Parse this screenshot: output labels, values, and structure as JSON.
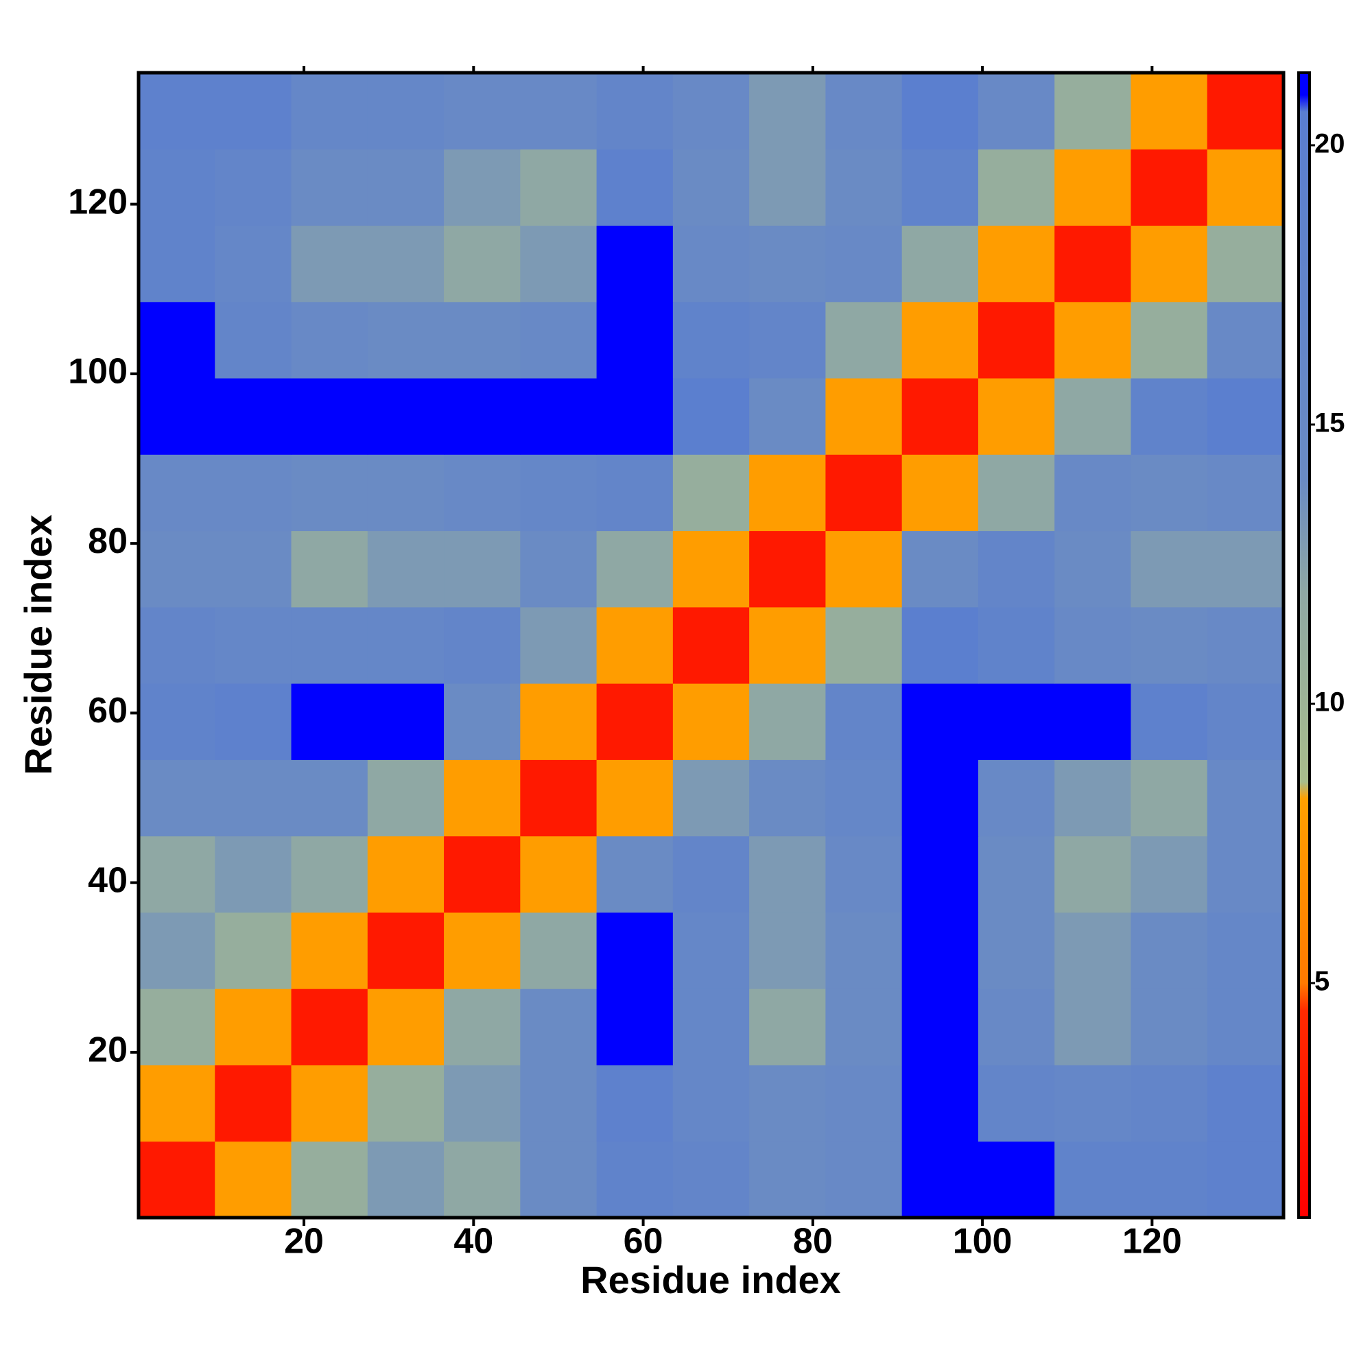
{
  "chart_data": {
    "type": "heatmap",
    "xlabel": "Residue index",
    "ylabel": "Residue index",
    "x": [
      5,
      14,
      23,
      32,
      41,
      50,
      59,
      68,
      77,
      86,
      95,
      104,
      113,
      122,
      131
    ],
    "y": [
      5,
      14,
      23,
      32,
      41,
      50,
      59,
      68,
      77,
      86,
      95,
      104,
      113,
      122,
      131
    ],
    "z": [
      [
        3,
        8,
        11,
        13,
        12,
        14,
        18,
        17,
        14,
        15,
        21,
        21,
        18,
        18,
        19
      ],
      [
        8,
        3,
        8,
        11,
        13,
        14,
        19,
        16,
        14,
        15,
        21,
        17,
        16,
        17,
        19
      ],
      [
        11,
        8,
        3,
        8,
        12,
        14,
        21,
        16,
        12,
        14,
        21,
        15,
        13,
        14,
        16
      ],
      [
        13,
        11,
        8,
        3,
        8,
        12,
        21,
        16,
        13,
        14,
        21,
        14,
        13,
        14,
        16
      ],
      [
        12,
        13,
        12,
        8,
        3,
        8,
        14,
        17,
        13,
        15,
        21,
        14,
        12,
        13,
        15
      ],
      [
        14,
        14,
        14,
        12,
        8,
        3,
        8,
        13,
        14,
        16,
        21,
        15,
        13,
        12,
        15
      ],
      [
        18,
        19,
        21,
        21,
        14,
        8,
        3,
        8,
        12,
        17,
        21,
        21,
        21,
        19,
        17
      ],
      [
        17,
        16,
        16,
        16,
        17,
        13,
        8,
        3,
        8,
        11,
        20,
        18,
        15,
        14,
        15
      ],
      [
        14,
        14,
        12,
        13,
        13,
        14,
        12,
        8,
        3,
        8,
        14,
        17,
        14,
        13,
        13
      ],
      [
        15,
        15,
        14,
        14,
        15,
        16,
        17,
        11,
        8,
        3,
        8,
        12,
        15,
        14,
        15
      ],
      [
        21,
        21,
        21,
        21,
        21,
        21,
        21,
        20,
        14,
        8,
        3,
        8,
        12,
        18,
        20
      ],
      [
        21,
        17,
        15,
        14,
        14,
        15,
        21,
        18,
        17,
        12,
        8,
        3,
        8,
        11,
        15
      ],
      [
        18,
        16,
        13,
        13,
        12,
        13,
        21,
        15,
        14,
        15,
        12,
        8,
        3,
        8,
        11
      ],
      [
        18,
        17,
        14,
        14,
        13,
        12,
        19,
        14,
        13,
        14,
        18,
        11,
        8,
        3,
        8
      ],
      [
        19,
        19,
        16,
        16,
        15,
        15,
        17,
        15,
        13,
        15,
        20,
        15,
        11,
        8,
        3
      ]
    ],
    "xlim": [
      0.5,
      135.5
    ],
    "ylim": [
      0.5,
      135.5
    ],
    "xticks": [
      20,
      40,
      60,
      80,
      100,
      120
    ],
    "yticks": [
      20,
      40,
      60,
      80,
      100,
      120
    ],
    "zlim": [
      0.8,
      21.3
    ],
    "zticks": [
      5,
      10,
      15,
      20
    ],
    "colorscale": [
      {
        "value": 0.8,
        "color": "#ff0000"
      },
      {
        "value": 4.5,
        "color": "#ff2a00"
      },
      {
        "value": 5,
        "color": "#ff7a00"
      },
      {
        "value": 8.3,
        "color": "#ffa000"
      },
      {
        "value": 8.6,
        "color": "#a8bd8c"
      },
      {
        "value": 12,
        "color": "#8fa8a4"
      },
      {
        "value": 14,
        "color": "#6a8bc4"
      },
      {
        "value": 20.6,
        "color": "#5a7ed0"
      },
      {
        "value": 20.9,
        "color": "#0000ff"
      },
      {
        "value": 21.3,
        "color": "#0000ff"
      }
    ]
  }
}
